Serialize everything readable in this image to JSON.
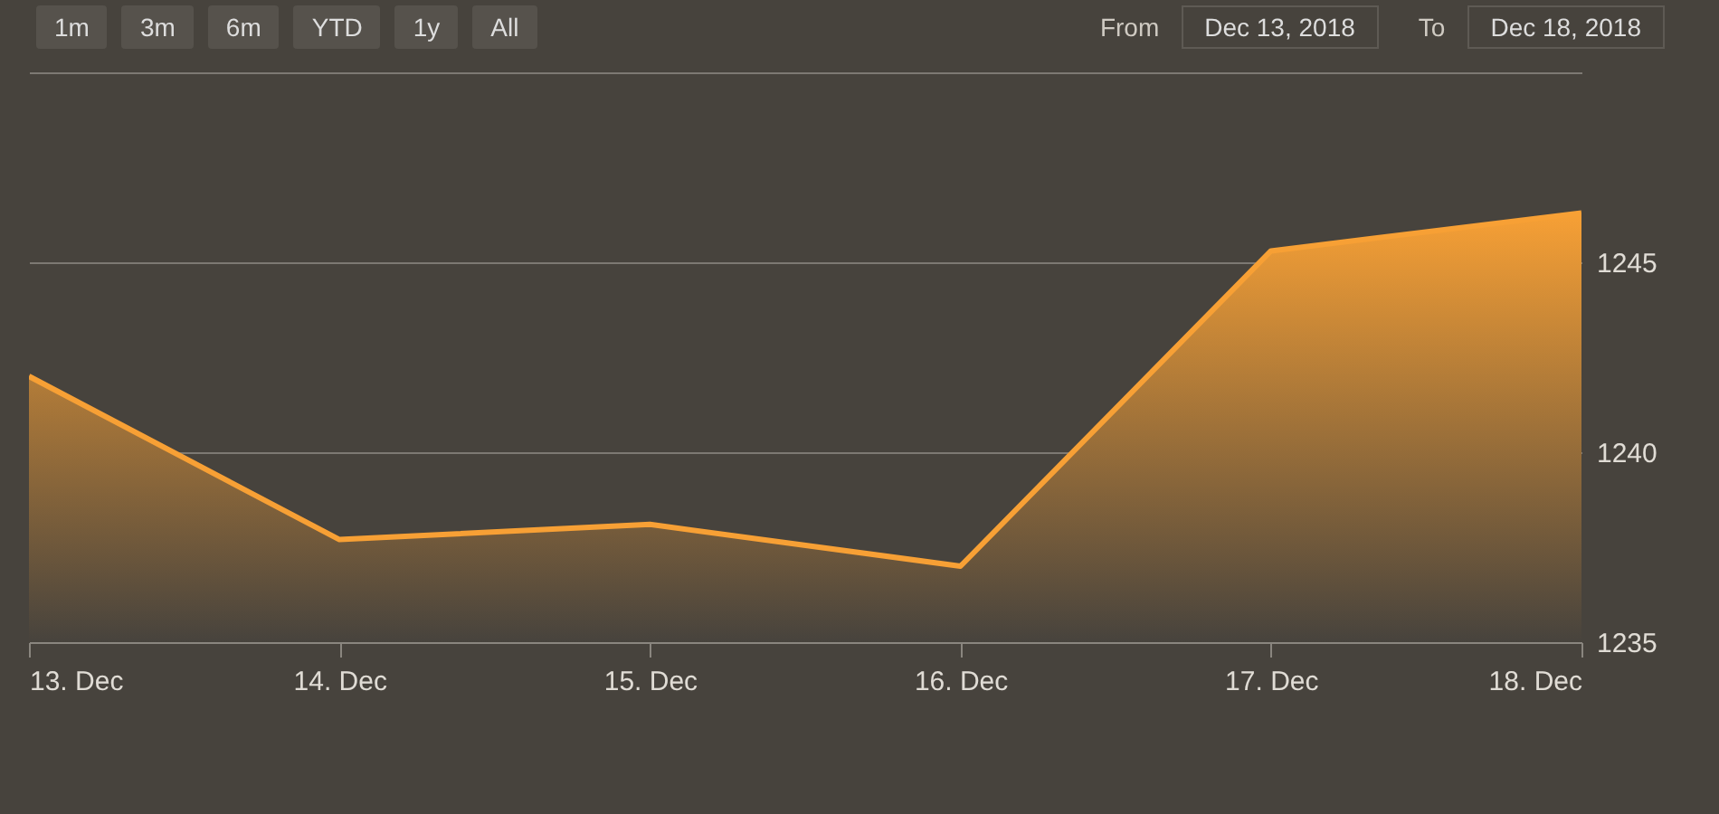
{
  "chart_data": {
    "type": "area",
    "x": [
      "2018-12-13",
      "2018-12-14",
      "2018-12-15",
      "2018-12-16",
      "2018-12-17",
      "2018-12-18"
    ],
    "series": [
      {
        "color": "#f7a035",
        "values": [
          1242.0,
          1237.7,
          1238.1,
          1237.0,
          1245.3,
          1246.3
        ]
      }
    ],
    "xlim": [
      "2018-12-13",
      "2018-12-18"
    ],
    "xticks": [
      {
        "value": "2018-12-13",
        "label": "13. Dec"
      },
      {
        "value": "2018-12-14",
        "label": "14. Dec"
      },
      {
        "value": "2018-12-15",
        "label": "15. Dec"
      },
      {
        "value": "2018-12-16",
        "label": "16. Dec"
      },
      {
        "value": "2018-12-17",
        "label": "17. Dec"
      },
      {
        "value": "2018-12-18",
        "label": "18. Dec"
      }
    ],
    "ylim": [
      1235,
      1250
    ],
    "yticks": [
      1235,
      1240,
      1245,
      {
        "value": 1250,
        "label": null
      }
    ],
    "grid": "y",
    "annotations": [
      "1m",
      "3m",
      "6m",
      "YTD",
      "1y",
      "All",
      "From",
      "Dec 13, 2018",
      "To",
      "Dec 18, 2018"
    ]
  }
}
